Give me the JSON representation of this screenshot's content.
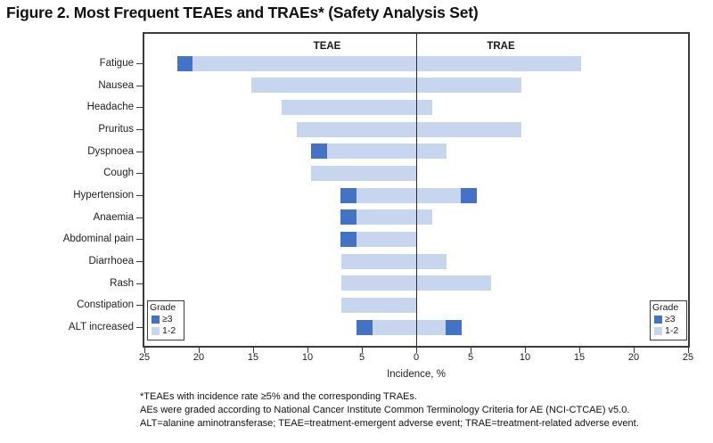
{
  "title": "Figure 2. Most Frequent TEAEs and TRAEs* (Safety Analysis Set)",
  "colors": {
    "grade3": "#4472C4",
    "grade12": "#C7D5EE",
    "axis": "#3c3c3c"
  },
  "chart_data": {
    "type": "bar",
    "subtype": "diverging-stacked-horizontal-butterfly",
    "title": "Most Frequent TEAEs and TRAEs (Safety Analysis Set)",
    "panel_labels": [
      "TEAE",
      "TRAE"
    ],
    "categories": [
      "Fatigue",
      "Nausea",
      "Headache",
      "Pruritus",
      "Dyspnoea",
      "Cough",
      "Hypertension",
      "Anaemia",
      "Abdominal pain",
      "Diarrhoea",
      "Rash",
      "Constipation",
      "ALT increased"
    ],
    "series": [
      {
        "name": "TEAE Grade 1-2",
        "side": "left",
        "values": [
          20.6,
          15.2,
          12.4,
          11.0,
          8.2,
          9.7,
          5.5,
          5.5,
          5.5,
          6.9,
          6.9,
          6.9,
          4.0
        ]
      },
      {
        "name": "TEAE Grade >=3",
        "side": "left",
        "values": [
          1.4,
          0,
          0,
          0,
          1.5,
          0,
          1.5,
          1.5,
          1.5,
          0,
          0,
          0,
          1.5
        ]
      },
      {
        "name": "TRAE Grade 1-2",
        "side": "right",
        "values": [
          15.2,
          9.7,
          1.5,
          9.7,
          2.8,
          0,
          4.1,
          1.5,
          0,
          2.8,
          6.9,
          0,
          2.7
        ]
      },
      {
        "name": "TRAE Grade >=3",
        "side": "right",
        "values": [
          0,
          0,
          0,
          0,
          0,
          0,
          1.5,
          0,
          0,
          0,
          0,
          0,
          1.5
        ]
      }
    ],
    "xlabel": "Incidence, %",
    "x_tick_values": [
      -25,
      -20,
      -15,
      -10,
      -5,
      0,
      5,
      10,
      15,
      20,
      25
    ],
    "x_tick_labels": [
      "25",
      "20",
      "15",
      "10",
      "5",
      "0",
      "5",
      "10",
      "15",
      "20",
      "25"
    ],
    "xlim_each_side": [
      0,
      25
    ],
    "grid": false,
    "legend": {
      "title": "Grade",
      "items": [
        {
          "label": "≥3",
          "color": "#4472C4"
        },
        {
          "label": "1-2",
          "color": "#C7D5EE"
        }
      ],
      "positions": [
        "bottom-left",
        "bottom-right"
      ]
    }
  },
  "footnotes": [
    "*TEAEs with incidence rate ≥5% and the corresponding TRAEs.",
    "AEs were graded according to National Cancer Institute Common Terminology Criteria for AE (NCI-CTCAE) v5.0.",
    "ALT=alanine aminotransferase; TEAE=treatment-emergent adverse event; TRAE=treatment-related adverse event."
  ]
}
